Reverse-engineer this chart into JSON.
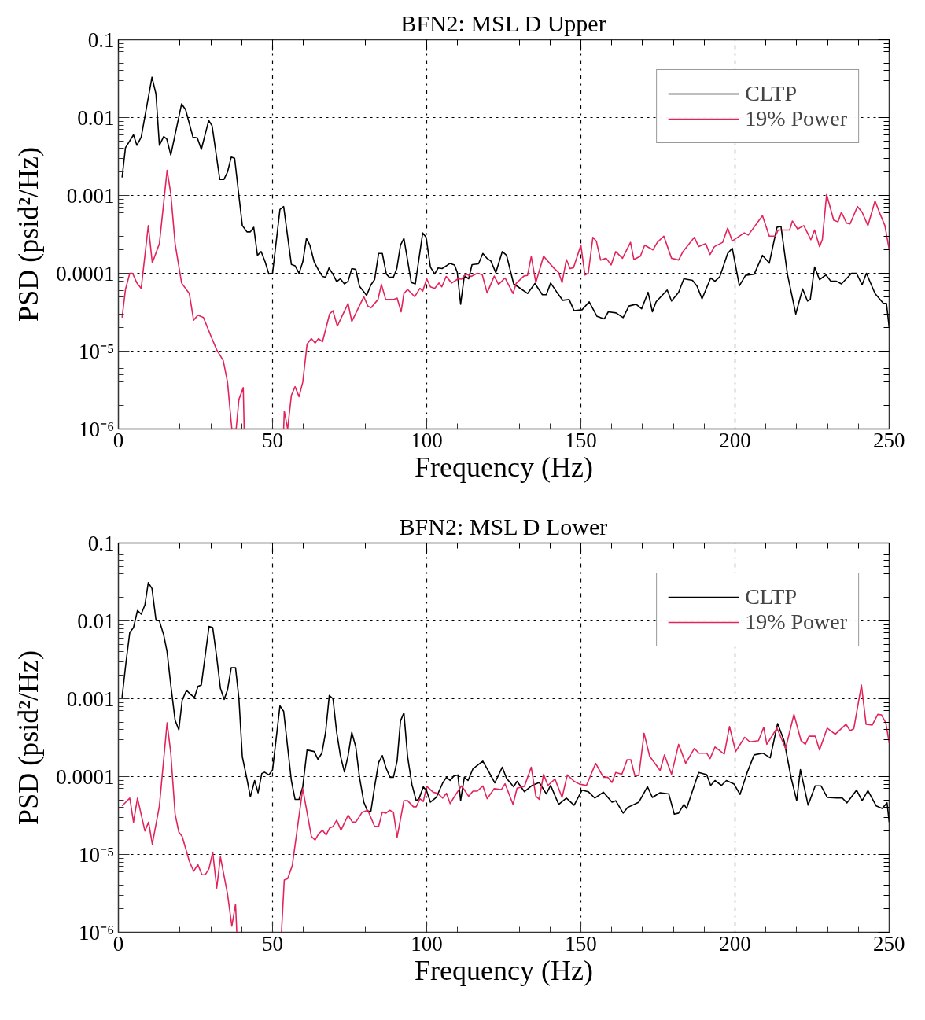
{
  "chart_data": [
    {
      "type": "line",
      "title": "BFN2: MSL D Upper",
      "xlabel": "Frequency (Hz)",
      "ylabel": "PSD (psid²/Hz)",
      "xlim": [
        0,
        250
      ],
      "ylim": [
        1e-06,
        0.1
      ],
      "xticks": [
        0,
        50,
        100,
        150,
        200,
        250
      ],
      "yticks": [
        {
          "value": 0.1,
          "label": "0.1"
        },
        {
          "value": 0.01,
          "label": "0.01"
        },
        {
          "value": 0.001,
          "label": "0.001"
        },
        {
          "value": 0.0001,
          "label": "0.0001"
        },
        {
          "value": 1e-05,
          "label": "10⁻⁵"
        },
        {
          "value": 1e-06,
          "label": "10⁻⁶"
        }
      ],
      "log": "y",
      "grid": true,
      "legend": "top right",
      "line_style": "solid",
      "series": [
        {
          "name": "CLTP",
          "color": "#000000",
          "x": [
            1.2,
            2.3,
            4.9,
            6,
            7.4,
            10.9,
            12.2,
            13.3,
            14.7,
            15.7,
            17,
            20.5,
            21.8,
            24.2,
            25.6,
            26.9,
            29.3,
            30.4,
            32.9,
            34.2,
            35.4,
            36.6,
            37.7,
            40.2,
            41.7,
            42.8,
            43.9,
            45.1,
            46.3,
            47.6,
            48.8,
            50,
            52.4,
            53.6,
            56.1,
            57.3,
            58.6,
            59.8,
            61,
            62.1,
            63.5,
            64.9,
            66.2,
            67.2,
            68.3,
            69.6,
            70.8,
            72,
            73.3,
            74.5,
            75.7,
            77,
            78.2,
            80.5,
            81.9,
            83.1,
            84.4,
            85.6,
            86.9,
            87.8,
            89.2,
            90.3,
            91.5,
            92.6,
            95,
            96.3,
            98.7,
            99.8,
            101.2,
            102.6,
            103.7,
            105,
            107.6,
            109,
            109.9,
            111,
            112.2,
            113.6,
            114.7,
            116.8,
            118.2,
            119.6,
            120.8,
            122.4,
            124.5,
            125.9,
            128.2,
            130.1,
            132.7,
            135.1,
            137.5,
            138.8,
            140.2,
            142.1,
            144.1,
            146.2,
            147.8,
            150.4,
            152.7,
            155.2,
            157.6,
            158.9,
            161.4,
            163.7,
            165.6,
            167.9,
            169.7,
            171.8,
            173.2,
            174.4,
            178,
            179.4,
            181.7,
            183.4,
            186.2,
            187.7,
            189.3,
            192.1,
            193.5,
            195.1,
            197.6,
            199.1,
            201.4,
            203.4,
            206.2,
            208.9,
            211.1,
            213.6,
            214.9,
            217,
            219.7,
            221.9,
            223.5,
            224.4,
            225.8,
            227.4,
            229.5,
            231.1,
            232.9,
            234.5,
            237.8,
            239.4,
            241.2,
            242.6,
            245.4,
            248.1,
            249.1,
            250
          ],
          "values": [
            0.0017,
            0.0041,
            0.006,
            0.0044,
            0.0056,
            0.033,
            0.02,
            0.0044,
            0.0057,
            0.0053,
            0.0033,
            0.015,
            0.0126,
            0.0056,
            0.0055,
            0.0039,
            0.0092,
            0.0078,
            0.0016,
            0.0016,
            0.002,
            0.0031,
            0.003,
            0.00041,
            0.00034,
            0.00034,
            0.00039,
            0.00017,
            0.00019,
            0.00014,
            9.8e-05,
            0.0001,
            0.00066,
            0.00072,
            0.00013,
            0.000125,
            0.0001,
            0.00014,
            0.00028,
            0.00023,
            0.00014,
            0.00011,
            9.1e-05,
            8.9e-05,
            0.000117,
            9.7e-05,
            7.8e-05,
            8.5e-05,
            7.3e-05,
            7.9e-05,
            0.000115,
            0.000112,
            6.8e-05,
            5.2e-05,
            7.1e-05,
            8.3e-05,
            0.00018,
            0.00018,
            9.8e-05,
            8.9e-05,
            8.9e-05,
            0.000115,
            0.00023,
            0.00028,
            7.6e-05,
            7.3e-05,
            0.00033,
            0.00029,
            0.00012,
            9.8e-05,
            0.000117,
            0.000115,
            0.000134,
            0.000128,
            0.000103,
            4e-05,
            9.3e-05,
            8.5e-05,
            0.000129,
            0.000132,
            0.00018,
            0.000155,
            0.000144,
            0.000102,
            0.00019,
            0.00017,
            7.3e-05,
            6.5e-05,
            5.5e-05,
            7.4e-05,
            5.3e-05,
            5.3e-05,
            7.5e-05,
            5.8e-05,
            4.5e-05,
            4.6e-05,
            3.3e-05,
            3.4e-05,
            4.3e-05,
            2.8e-05,
            2.6e-05,
            3.2e-05,
            3.1e-05,
            2.7e-05,
            3.8e-05,
            4e-05,
            3.5e-05,
            5.7e-05,
            3.2e-05,
            4.3e-05,
            6.1e-05,
            4.4e-05,
            5.7e-05,
            8.5e-05,
            8.1e-05,
            6.8e-05,
            4.7e-05,
            8.7e-05,
            7.9e-05,
            9.1e-05,
            0.00018,
            0.00021,
            6.9e-05,
            9.4e-05,
            9.7e-05,
            0.00017,
            0.000135,
            0.00039,
            0.0004,
            9.7e-05,
            3e-05,
            6.3e-05,
            4.4e-05,
            4.6e-05,
            0.00012,
            8.3e-05,
            9.5e-05,
            7.9e-05,
            7.9e-05,
            7.3e-05,
            0.0001,
            0.0001,
            7.1e-05,
            0.0001,
            5.5e-05,
            4.1e-05,
            4.1e-05,
            2e-05
          ]
        },
        {
          "name": "19% Power",
          "color": "#e3245a",
          "x": [
            1.2,
            2.3,
            3.7,
            4.6,
            6,
            7.4,
            9.7,
            11,
            13.3,
            15.8,
            17,
            18.4,
            20.5,
            23,
            24.4,
            25.8,
            27.6,
            29.9,
            31.9,
            34,
            35.4,
            36.8,
            38.2,
            39.1,
            40.5,
            40.8,
            47,
            53.6,
            53.8,
            54.9,
            56.1,
            57.3,
            58.6,
            59.8,
            61.2,
            62.6,
            63.8,
            64.9,
            66.2,
            68.5,
            69.6,
            71,
            74.5,
            75.7,
            79.6,
            80.9,
            81.9,
            84.2,
            85.3,
            86.7,
            89.2,
            90.4,
            91.7,
            92.6,
            93.8,
            96.1,
            97.8,
            98.7,
            100,
            101.2,
            102.6,
            104,
            104.9,
            106.3,
            108.1,
            110.2,
            111.3,
            112.7,
            114.4,
            116.4,
            118,
            119.6,
            121.9,
            123.3,
            125.4,
            128,
            129,
            131.5,
            132.7,
            133.9,
            135.4,
            137.9,
            141.1,
            142.8,
            143.9,
            145.3,
            146.5,
            147.6,
            150,
            151.3,
            152.4,
            153.9,
            155,
            156.4,
            158.2,
            159.8,
            161.3,
            163.5,
            166.1,
            167.2,
            169.3,
            170.7,
            173.4,
            174.8,
            176.9,
            179.4,
            181.7,
            183.1,
            186.8,
            188.2,
            190.5,
            191.9,
            193.3,
            196,
            197.6,
            199.1,
            203,
            204.3,
            208.9,
            211.1,
            213.1,
            214,
            217.7,
            218.6,
            220.3,
            222.3,
            224.6,
            225.8,
            227.4,
            228.3,
            229.7,
            232,
            233.4,
            234.5,
            236.2,
            237.3,
            239.7,
            241.2,
            243.1,
            245.4,
            247.1,
            248.6,
            250
          ],
          "values": [
            2.7e-05,
            6.2e-05,
            0.0001,
            0.0001,
            7.5e-05,
            6.4e-05,
            0.00041,
            0.000136,
            0.00024,
            0.0021,
            0.00105,
            0.00024,
            7.5e-05,
            5.5e-05,
            2.5e-05,
            2.9e-05,
            2.7e-05,
            1.6e-05,
            1.04e-05,
            7.6e-06,
            4e-06,
            1e-06,
            1e-06,
            2.4e-06,
            3.4e-06,
            1e-06,
            null,
            1e-06,
            1.7e-06,
            1e-06,
            2.7e-06,
            3.5e-06,
            2.6e-06,
            4e-06,
            1.23e-05,
            1.45e-05,
            1.27e-05,
            1.45e-05,
            1.32e-05,
            3e-05,
            3.3e-05,
            2.1e-05,
            4.1e-05,
            2.4e-05,
            5e-05,
            3.8e-05,
            3.6e-05,
            4.6e-05,
            7.2e-05,
            4.6e-05,
            4.6e-05,
            4.8e-05,
            3.2e-05,
            5.5e-05,
            6.2e-05,
            5e-05,
            6.4e-05,
            5.9e-05,
            8.5e-05,
            6.7e-05,
            6.4e-05,
            7.5e-05,
            6.7e-05,
            9.1e-05,
            7.5e-05,
            8.5e-05,
            8.4e-05,
            9.8e-05,
            9.1e-05,
            0.0001,
            9.6e-05,
            5.6e-05,
            9.2e-05,
            7.2e-05,
            8.7e-05,
            5.5e-05,
            7.4e-05,
            9.2e-05,
            9.4e-05,
            0.000164,
            7.6e-05,
            0.000166,
            0.000118,
            0.000102,
            7.6e-05,
            0.00015,
            0.000115,
            0.000118,
            0.00023,
            9.5e-05,
            0.0001,
            0.00029,
            0.00026,
            0.000148,
            0.000156,
            0.000128,
            0.00019,
            0.000156,
            0.00025,
            0.00015,
            0.000166,
            0.00023,
            0.0002,
            0.00025,
            0.0003,
            0.000156,
            0.000148,
            0.00019,
            0.00029,
            0.00022,
            0.00024,
            0.000174,
            0.00022,
            0.00025,
            0.00038,
            0.00026,
            0.00033,
            0.00031,
            0.00055,
            0.0003,
            0.0003,
            0.00036,
            0.00036,
            0.00047,
            0.00037,
            0.00041,
            0.00027,
            0.00036,
            0.00022,
            0.00027,
            0.00103,
            0.00048,
            0.00046,
            0.00061,
            0.00044,
            0.00043,
            0.00072,
            0.00061,
            0.00041,
            0.00085,
            0.00057,
            0.00041,
            0.0002
          ]
        }
      ]
    },
    {
      "type": "line",
      "title": "BFN2: MSL D Lower",
      "xlabel": "Frequency (Hz)",
      "ylabel": "PSD (psid²/Hz)",
      "xlim": [
        0,
        250
      ],
      "ylim": [
        1e-06,
        0.1
      ],
      "xticks": [
        0,
        50,
        100,
        150,
        200,
        250
      ],
      "yticks": [
        {
          "value": 0.1,
          "label": "0.1"
        },
        {
          "value": 0.01,
          "label": "0.01"
        },
        {
          "value": 0.001,
          "label": "0.001"
        },
        {
          "value": 0.0001,
          "label": "0.0001"
        },
        {
          "value": 1e-05,
          "label": "10⁻⁵"
        },
        {
          "value": 1e-06,
          "label": "10⁻⁶"
        }
      ],
      "log": "y",
      "grid": true,
      "legend": "top right",
      "line_style": "solid",
      "series": [
        {
          "name": "CLTP",
          "color": "#000000",
          "x": [
            1.2,
            2.5,
            3.7,
            4.9,
            6.2,
            7.4,
            8.6,
            9.7,
            10.9,
            12.2,
            13.3,
            14.7,
            15.8,
            17,
            18.4,
            19.6,
            20.7,
            22.1,
            23.5,
            24.7,
            25.8,
            26.9,
            29.4,
            30.6,
            31.9,
            33.1,
            34.3,
            35.4,
            36.6,
            38,
            39.1,
            40.2,
            41.7,
            42.8,
            44.2,
            45.3,
            46.5,
            47.4,
            48.8,
            50,
            52.4,
            53.6,
            56.1,
            57.3,
            58.6,
            59.8,
            61.2,
            63.5,
            64.7,
            66,
            67.2,
            68.4,
            69.6,
            70.8,
            72,
            73.3,
            74.5,
            75.7,
            77,
            78.2,
            79.6,
            80.8,
            81.9,
            83.1,
            84.4,
            85.6,
            86.8,
            88.1,
            89.2,
            90.4,
            91.5,
            92.6,
            93.8,
            95.2,
            96.6,
            97.5,
            98.9,
            100,
            101.2,
            103.1,
            105.2,
            106.4,
            107.6,
            108.8,
            110.1,
            111,
            112.2,
            113.4,
            115,
            116.6,
            118.2,
            119.9,
            122.1,
            124.5,
            125.9,
            128.2,
            129.3,
            131.7,
            134.2,
            136.5,
            138.8,
            140.2,
            142.8,
            145.3,
            147.8,
            150.4,
            152.4,
            154.5,
            157.3,
            160.1,
            161.3,
            163.7,
            165.1,
            168.8,
            171.6,
            173.2,
            175.7,
            178.5,
            180.3,
            181.7,
            183.4,
            184.3,
            188.2,
            190.8,
            192.1,
            193.5,
            195.6,
            197.2,
            199.7,
            201.6,
            203.9,
            206.2,
            209,
            211.4,
            213.8,
            215.9,
            218.2,
            220,
            221.2,
            223.7,
            226,
            227.9,
            229.9,
            232.9,
            234.8,
            236.3,
            239.4,
            241.2,
            243.1,
            245.8,
            247.7,
            249.3,
            250
          ],
          "values": [
            0.00104,
            0.003,
            0.0071,
            0.0082,
            0.0136,
            0.0122,
            0.016,
            0.031,
            0.026,
            0.0102,
            0.01,
            0.0066,
            0.004,
            0.0015,
            0.00053,
            0.0004,
            0.00096,
            0.00128,
            0.00113,
            0.00104,
            0.00144,
            0.0015,
            0.0085,
            0.0082,
            0.0034,
            0.00136,
            0.00098,
            0.0013,
            0.0025,
            0.0025,
            0.001,
            0.00018,
            9.3e-05,
            5.5e-05,
            8.9e-05,
            6.2e-05,
            0.000109,
            0.000114,
            0.000105,
            0.000122,
            0.00081,
            0.00069,
            8.9e-05,
            5.1e-05,
            5.1e-05,
            7.4e-05,
            0.00022,
            0.00021,
            0.000167,
            0.0002,
            0.00037,
            0.0011,
            0.001,
            0.00037,
            0.000186,
            0.000115,
            0.000186,
            0.00037,
            0.00024,
            9.8e-05,
            4.7e-05,
            3.6e-05,
            3.6e-05,
            7.4e-05,
            0.000152,
            0.000186,
            0.000129,
            9.8e-05,
            9.8e-05,
            0.000159,
            0.00052,
            0.00066,
            0.00018,
            7.9e-05,
            4.9e-05,
            5.2e-05,
            7.4e-05,
            6.5e-05,
            4.7e-05,
            5.4e-05,
            8.3e-05,
            9.8e-05,
            8.9e-05,
            0.000102,
            0.000105,
            4.9e-05,
            9.8e-05,
            8.9e-05,
            0.000126,
            0.000141,
            0.000158,
            0.00012,
            8.3e-05,
            0.000132,
            9.5e-05,
            7.4e-05,
            8.7e-05,
            6.4e-05,
            7.7e-05,
            8.4e-05,
            6e-05,
            7.7e-05,
            4.4e-05,
            5.3e-05,
            4.3e-05,
            6.7e-05,
            6.4e-05,
            5.3e-05,
            6.3e-05,
            4.7e-05,
            4.9e-05,
            3.4e-05,
            4e-05,
            4.7e-05,
            7.4e-05,
            5.4e-05,
            6.2e-05,
            6e-05,
            3.3e-05,
            3.4e-05,
            4.4e-05,
            3.9e-05,
            0.000113,
            0.000106,
            7.7e-05,
            8.9e-05,
            7.7e-05,
            8.9e-05,
            8e-05,
            5.9e-05,
            0.000112,
            0.00019,
            0.0002,
            0.000174,
            0.00048,
            0.00029,
            9.6e-05,
            4.9e-05,
            0.000123,
            4.3e-05,
            7.6e-05,
            7.6e-05,
            5.4e-05,
            5.3e-05,
            5.3e-05,
            4.6e-05,
            6.7e-05,
            4.9e-05,
            6.6e-05,
            4.2e-05,
            3.9e-05,
            4.6e-05,
            2.6e-05
          ]
        },
        {
          "name": "19% Power",
          "color": "#e3245a",
          "x": [
            1.2,
            3.7,
            4.9,
            6.2,
            8.6,
            9.8,
            11,
            13.3,
            15.8,
            17,
            18.4,
            19.6,
            20.7,
            23,
            24.4,
            25.8,
            27.1,
            28.2,
            29.4,
            30.6,
            31.9,
            33.1,
            35.4,
            36.8,
            38,
            38.4,
            45,
            52.9,
            53.8,
            54.9,
            56.4,
            59.8,
            62.6,
            63.8,
            64.9,
            66.2,
            67.4,
            68.5,
            69.6,
            70.8,
            72.2,
            74.5,
            75.9,
            77,
            79.1,
            80.9,
            83.1,
            84.4,
            85.6,
            86.8,
            88,
            89.2,
            90.4,
            92.6,
            93.8,
            95.7,
            96.6,
            97.8,
            98.9,
            100,
            102.1,
            103.5,
            105.2,
            106.4,
            107.6,
            108.8,
            111.3,
            113.6,
            115,
            116.4,
            118.2,
            119.6,
            121.9,
            124.2,
            125.4,
            128,
            129.3,
            131.7,
            133.9,
            135.4,
            136.5,
            137.9,
            139.3,
            141.6,
            143.9,
            145.6,
            147.8,
            149.6,
            151.8,
            154.8,
            157.3,
            158.7,
            160.1,
            161.3,
            163.3,
            165,
            166.2,
            167.5,
            168.8,
            170.5,
            172.3,
            175.7,
            177.1,
            179.4,
            181.7,
            184,
            186.8,
            188.3,
            190.8,
            191.9,
            193.5,
            196.5,
            198.2,
            200.2,
            203.1,
            204.8,
            207.6,
            209.3,
            210.3,
            213.6,
            216.4,
            219.1,
            221.4,
            222.8,
            224,
            226,
            227.4,
            229.9,
            232.5,
            236,
            237.3,
            238.5,
            241,
            242.5,
            244.5,
            246.3,
            247.5,
            248.9,
            250
          ],
          "values": [
            4.2e-05,
            5.3e-05,
            2.6e-05,
            5.3e-05,
            2e-05,
            2.6e-05,
            1.36e-05,
            4.2e-05,
            0.00049,
            0.0002,
            3.3e-05,
            1.94e-05,
            1.7e-05,
            8.2e-06,
            6.1e-06,
            7.4e-06,
            5.5e-06,
            5.5e-06,
            6.6e-06,
            1.07e-05,
            3.7e-06,
            9.3e-06,
            3.1e-06,
            1.2e-06,
            2.3e-06,
            1e-06,
            null,
            1e-06,
            4.7e-06,
            4.9e-06,
            7.2e-06,
            7e-05,
            1.7e-05,
            1.53e-05,
            1.83e-05,
            2.05e-05,
            1.78e-05,
            2.18e-05,
            2.28e-05,
            2.75e-05,
            2.05e-05,
            3.2e-05,
            2.6e-05,
            2.6e-05,
            3.5e-05,
            3.7e-05,
            2.3e-05,
            2.3e-05,
            3.5e-05,
            3.4e-05,
            3.7e-05,
            3.5e-05,
            1.66e-05,
            4.9e-05,
            4.9e-05,
            4.1e-05,
            4.1e-05,
            5.2e-05,
            4.8e-05,
            7.5e-05,
            6.3e-05,
            6.1e-05,
            5.3e-05,
            6.1e-05,
            4.5e-05,
            5.4e-05,
            7.6e-05,
            5.6e-05,
            6.5e-05,
            6.5e-05,
            7.6e-05,
            5.2e-05,
            7e-05,
            6.8e-05,
            8.1e-05,
            4.4e-05,
            7.1e-05,
            7.5e-05,
            0.000132,
            5.6e-05,
            5.1e-05,
            0.000107,
            7.7e-05,
            9.3e-05,
            5.4e-05,
            0.000105,
            8.7e-05,
            8e-05,
            7.7e-05,
            0.000148,
            9.8e-05,
            9.8e-05,
            8.4e-05,
            0.000113,
            0.000107,
            0.000165,
            0.000165,
            0.000103,
            0.000103,
            0.00036,
            0.000183,
            0.00012,
            0.00019,
            0.000107,
            0.00026,
            0.000148,
            0.00023,
            0.0002,
            0.0002,
            0.00017,
            0.00024,
            0.000195,
            0.00044,
            0.00021,
            0.00032,
            0.00028,
            0.00029,
            0.00043,
            0.00026,
            0.00042,
            0.00023,
            0.00063,
            0.00029,
            0.00026,
            0.00033,
            0.00033,
            0.00022,
            0.00042,
            0.00035,
            0.00047,
            0.00039,
            0.00041,
            0.0015,
            0.00047,
            0.00046,
            0.00063,
            0.00062,
            0.00049,
            0.00027
          ]
        }
      ]
    }
  ]
}
